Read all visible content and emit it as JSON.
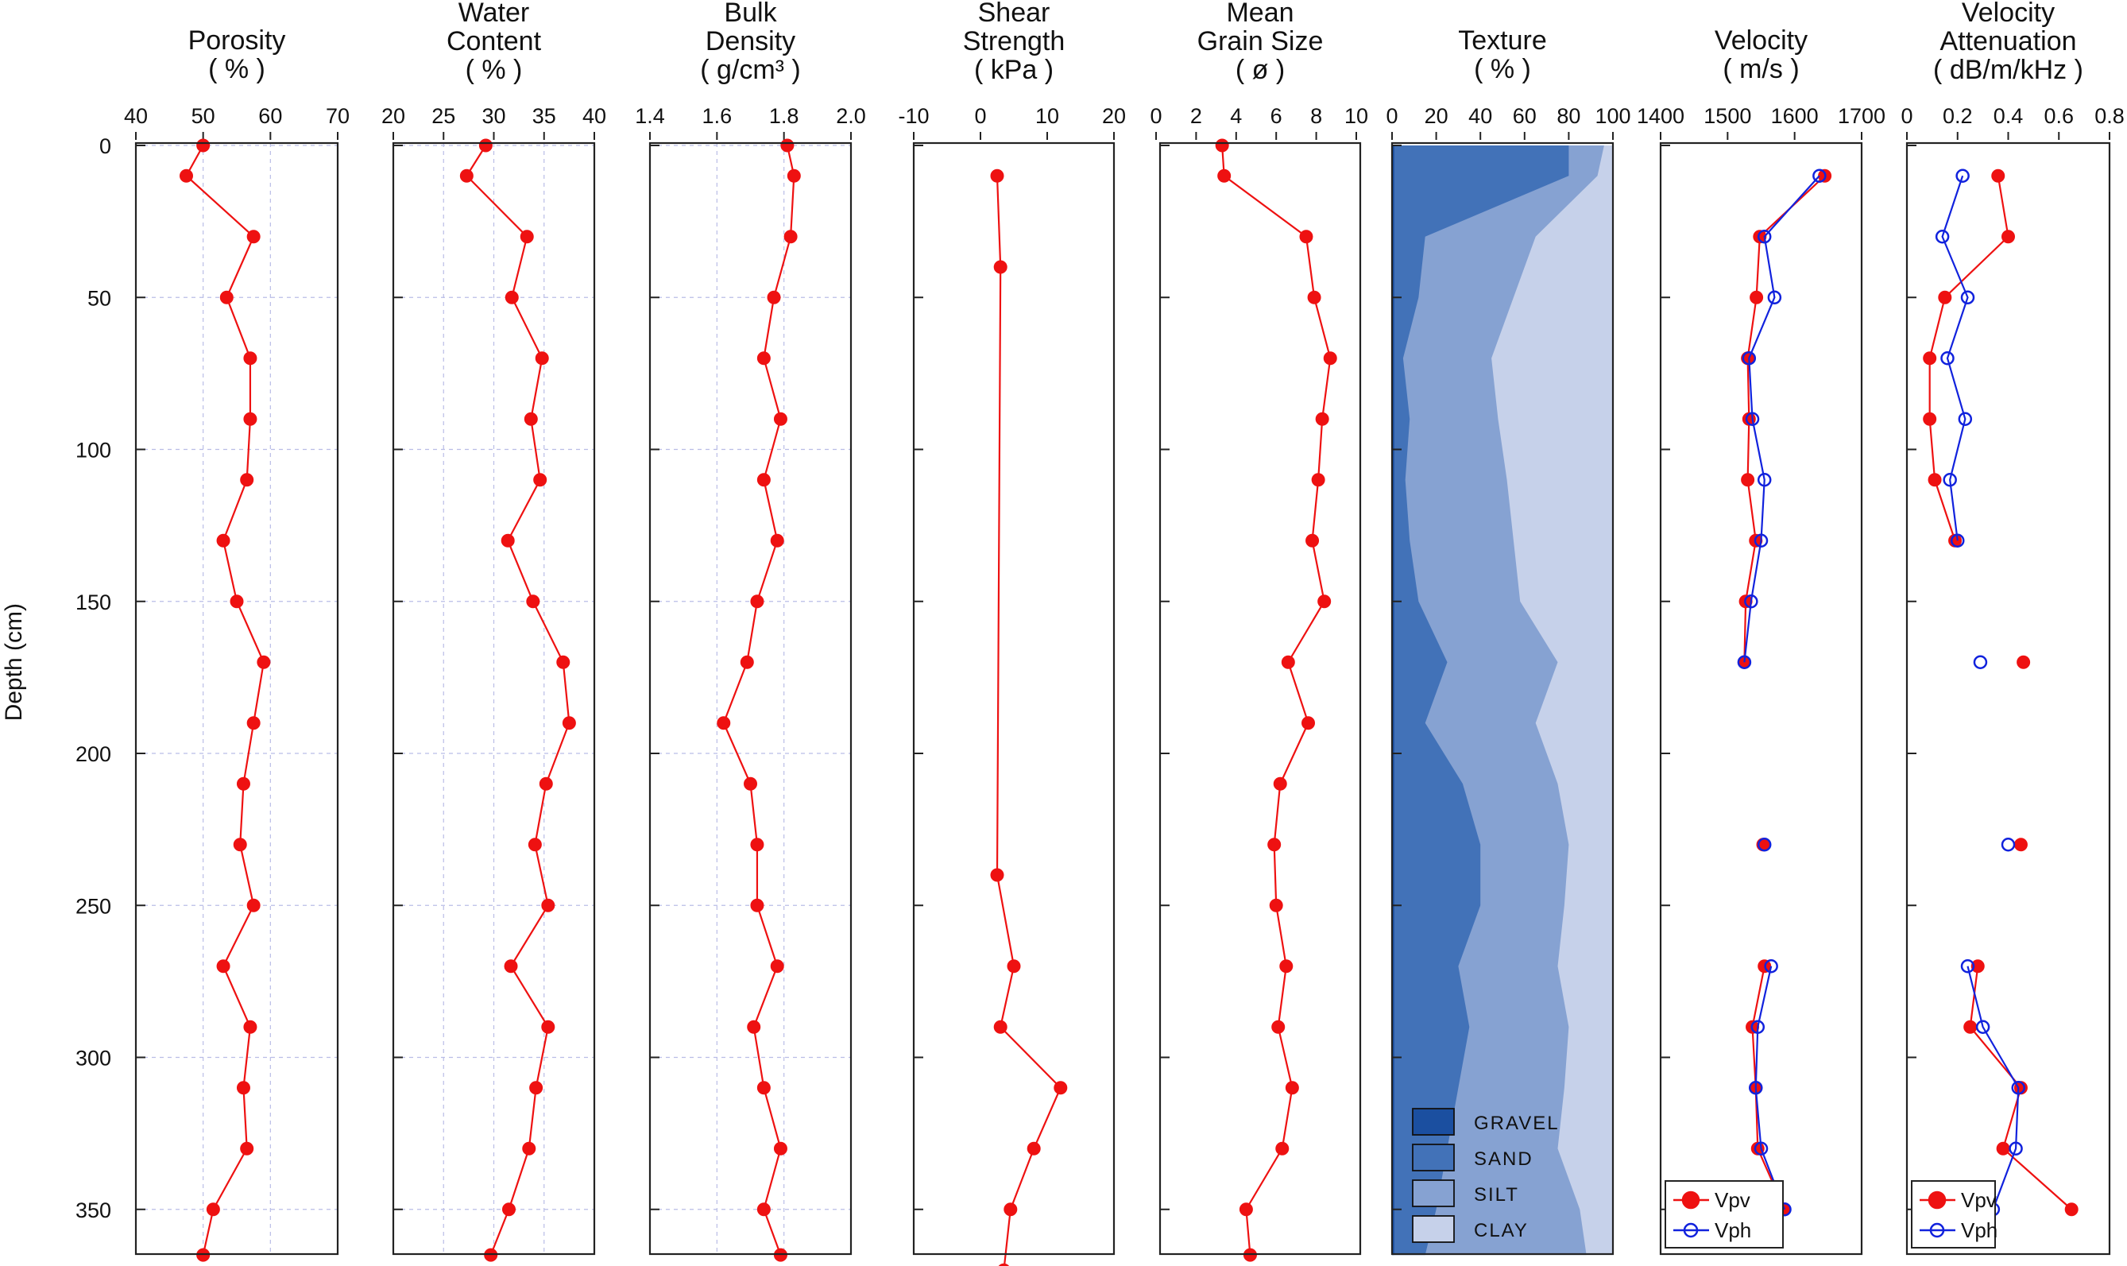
{
  "chart_data": {
    "type": "line",
    "ylabel": "Depth (cm)",
    "yticks": [
      0,
      50,
      100,
      150,
      200,
      250,
      300,
      350
    ],
    "depth": [
      0,
      10,
      30,
      50,
      70,
      90,
      110,
      130,
      150,
      170,
      190,
      210,
      230,
      250,
      270,
      290,
      310,
      330,
      350,
      365
    ],
    "panels": [
      {
        "name": "porosity",
        "title_lines": [
          "Porosity",
          "( % )"
        ],
        "xticks": [
          "40",
          "50",
          "60",
          "70"
        ],
        "xlim": [
          40,
          70
        ],
        "grid": true,
        "series": [
          {
            "name": "",
            "color": "#ee1111",
            "depth": [
              0,
              10,
              30,
              50,
              70,
              90,
              110,
              130,
              150,
              170,
              190,
              210,
              230,
              250,
              270,
              290,
              310,
              330,
              350,
              365
            ],
            "values": [
              50,
              47.5,
              57.5,
              53.5,
              57,
              57,
              56.5,
              53,
              55,
              59,
              57.5,
              56,
              55.5,
              57.5,
              53,
              57,
              56,
              56.5,
              51.5,
              50
            ]
          }
        ]
      },
      {
        "name": "water-content",
        "title_lines": [
          "Water",
          "Content",
          "( % )"
        ],
        "xticks": [
          "20",
          "25",
          "30",
          "35",
          "40"
        ],
        "xlim": [
          20,
          40
        ],
        "grid": true,
        "series": [
          {
            "name": "",
            "color": "#ee1111",
            "depth": [
              0,
              10,
              30,
              50,
              70,
              90,
              110,
              130,
              150,
              170,
              190,
              210,
              230,
              250,
              270,
              290,
              310,
              330,
              350,
              365
            ],
            "values": [
              29.2,
              27.3,
              33.3,
              31.8,
              34.8,
              33.7,
              34.6,
              31.4,
              33.9,
              36.9,
              37.5,
              35.2,
              34.1,
              35.4,
              31.7,
              35.4,
              34.2,
              33.5,
              31.5,
              29.7
            ]
          }
        ]
      },
      {
        "name": "bulk-density",
        "title_lines": [
          "Bulk",
          "Density",
          "( g/cm³ )"
        ],
        "xticks": [
          "1.4",
          "1.6",
          "1.8",
          "2.0"
        ],
        "xlim": [
          1.4,
          2.0
        ],
        "grid": true,
        "series": [
          {
            "name": "",
            "color": "#ee1111",
            "depth": [
              0,
              10,
              30,
              50,
              70,
              90,
              110,
              130,
              150,
              170,
              190,
              210,
              230,
              250,
              270,
              290,
              310,
              330,
              350,
              365
            ],
            "values": [
              1.81,
              1.83,
              1.82,
              1.77,
              1.74,
              1.79,
              1.74,
              1.78,
              1.72,
              1.69,
              1.62,
              1.7,
              1.72,
              1.72,
              1.78,
              1.71,
              1.74,
              1.79,
              1.74,
              1.79
            ]
          }
        ]
      },
      {
        "name": "shear-strength",
        "title_lines": [
          "Shear",
          "Strength",
          "( kPa )"
        ],
        "xticks": [
          "-10",
          "0",
          "10",
          "20"
        ],
        "xlim": [
          -10,
          20
        ],
        "grid": false,
        "series": [
          {
            "name": "",
            "color": "#ee1111",
            "depth": [
              10,
              40,
              240,
              270,
              290,
              310,
              330,
              350,
              370
            ],
            "values": [
              2.5,
              3,
              2.5,
              5,
              3,
              12,
              8,
              4.5,
              3.5
            ]
          }
        ]
      },
      {
        "name": "mean-grain-size",
        "title_lines": [
          "Mean",
          "Grain Size",
          "( ø )"
        ],
        "xticks": [
          "0",
          "2",
          "4",
          "6",
          "8",
          "10"
        ],
        "xlim": [
          0,
          10
        ],
        "grid": false,
        "series": [
          {
            "name": "",
            "color": "#ee1111",
            "depth": [
              0,
              10,
              30,
              50,
              70,
              90,
              110,
              130,
              150,
              170,
              190,
              210,
              230,
              250,
              270,
              290,
              310,
              330,
              350,
              365
            ],
            "values": [
              3.3,
              3.4,
              7.5,
              7.9,
              8.7,
              8.3,
              8.1,
              7.8,
              8.4,
              6.6,
              7.6,
              6.2,
              5.9,
              6.0,
              6.5,
              6.1,
              6.8,
              6.3,
              4.5,
              4.7
            ]
          }
        ]
      },
      {
        "name": "texture",
        "title_lines": [
          "Texture",
          "( % )"
        ],
        "xticks": [
          "0",
          "20",
          "40",
          "60",
          "80",
          "100"
        ],
        "xlim": [
          0,
          100
        ],
        "grid": false,
        "stack_depth": [
          0,
          10,
          30,
          50,
          70,
          90,
          110,
          130,
          150,
          170,
          190,
          210,
          230,
          250,
          270,
          290,
          310,
          330,
          350,
          365
        ],
        "stack_cumulative": [
          {
            "name": "GRAVEL",
            "color": "#1b4fa0",
            "values": [
              1,
              1,
              1,
              1,
              1,
              1,
              1,
              1,
              1,
              1,
              1,
              1,
              1,
              1,
              1,
              1,
              1,
              1,
              1,
              1
            ]
          },
          {
            "name": "SAND",
            "color": "#4272b8",
            "values": [
              80,
              80,
              15,
              12,
              5,
              8,
              6,
              8,
              12,
              25,
              15,
              32,
              40,
              40,
              30,
              35,
              30,
              25,
              20,
              15
            ]
          },
          {
            "name": "SILT",
            "color": "#86a2d2",
            "values": [
              96,
              93,
              65,
              55,
              45,
              48,
              52,
              55,
              58,
              75,
              65,
              75,
              80,
              78,
              75,
              80,
              78,
              75,
              85,
              88
            ]
          },
          {
            "name": "CLAY",
            "color": "#c6d1ea",
            "values": [
              100,
              100,
              100,
              100,
              100,
              100,
              100,
              100,
              100,
              100,
              100,
              100,
              100,
              100,
              100,
              100,
              100,
              100,
              100,
              100
            ]
          }
        ],
        "legend": [
          "GRAVEL",
          "SAND",
          "SILT",
          "CLAY"
        ],
        "legend_position": "bottom-left"
      },
      {
        "name": "velocity",
        "title_lines": [
          "Velocity",
          "( m/s )"
        ],
        "xticks": [
          "1400",
          "1500",
          "1600",
          "1700"
        ],
        "xlim": [
          1400,
          1700
        ],
        "grid": false,
        "legend_position": "bottom-left",
        "series": [
          {
            "name": "Vpv",
            "color": "#ee1111",
            "marker": "filled-circle",
            "segments": [
              {
                "depth": [
                  10,
                  30,
                  50,
                  70,
                  90,
                  110,
                  130,
                  150,
                  170
                ],
                "values": [
                  1645,
                  1548,
                  1543,
                  1530,
                  1532,
                  1530,
                  1542,
                  1527,
                  1525
                ]
              },
              {
                "depth": [
                  230
                ],
                "values": [
                  1553
                ]
              },
              {
                "depth": [
                  270,
                  290,
                  310,
                  330,
                  350
                ],
                "values": [
                  1555,
                  1537,
                  1542,
                  1545,
                  1585
                ]
              }
            ]
          },
          {
            "name": "Vph",
            "color": "#1122dd",
            "marker": "open-circle",
            "segments": [
              {
                "depth": [
                  10,
                  30,
                  50,
                  70,
                  90,
                  110,
                  130,
                  150,
                  170
                ],
                "values": [
                  1637,
                  1555,
                  1570,
                  1532,
                  1537,
                  1555,
                  1550,
                  1535,
                  1525
                ]
              },
              {
                "depth": [
                  230
                ],
                "values": [
                  1555
                ]
              },
              {
                "depth": [
                  270,
                  290,
                  310,
                  330,
                  350
                ],
                "values": [
                  1565,
                  1545,
                  1542,
                  1550,
                  1585
                ]
              }
            ]
          }
        ]
      },
      {
        "name": "velocity-attenuation",
        "title_lines": [
          "Velocity",
          "Attenuation",
          "( dB/m/kHz )"
        ],
        "xticks": [
          "0",
          "0.2",
          "0.4",
          "0.6",
          "0.8"
        ],
        "xlim": [
          0,
          0.8
        ],
        "grid": false,
        "legend_position": "bottom-left",
        "series": [
          {
            "name": "Vpv",
            "color": "#ee1111",
            "marker": "filled-circle",
            "segments": [
              {
                "depth": [
                  10,
                  30,
                  50,
                  70,
                  90,
                  110,
                  130
                ],
                "values": [
                  0.36,
                  0.4,
                  0.15,
                  0.09,
                  0.09,
                  0.11,
                  0.19
                ]
              },
              {
                "depth": [
                  170
                ],
                "values": [
                  0.46
                ]
              },
              {
                "depth": [
                  230
                ],
                "values": [
                  0.45
                ]
              },
              {
                "depth": [
                  270,
                  290,
                  310,
                  330,
                  350
                ],
                "values": [
                  0.28,
                  0.25,
                  0.45,
                  0.38,
                  0.65
                ]
              }
            ]
          },
          {
            "name": "Vph",
            "color": "#1122dd",
            "marker": "open-circle",
            "segments": [
              {
                "depth": [
                  10,
                  30,
                  50,
                  70,
                  90,
                  110,
                  130
                ],
                "values": [
                  0.22,
                  0.14,
                  0.24,
                  0.16,
                  0.23,
                  0.17,
                  0.2
                ]
              },
              {
                "depth": [
                  170
                ],
                "values": [
                  0.29
                ]
              },
              {
                "depth": [
                  230
                ],
                "values": [
                  0.4
                ]
              },
              {
                "depth": [
                  270,
                  290,
                  310,
                  330,
                  350
                ],
                "values": [
                  0.24,
                  0.3,
                  0.44,
                  0.43,
                  0.34
                ]
              }
            ]
          }
        ]
      }
    ]
  }
}
